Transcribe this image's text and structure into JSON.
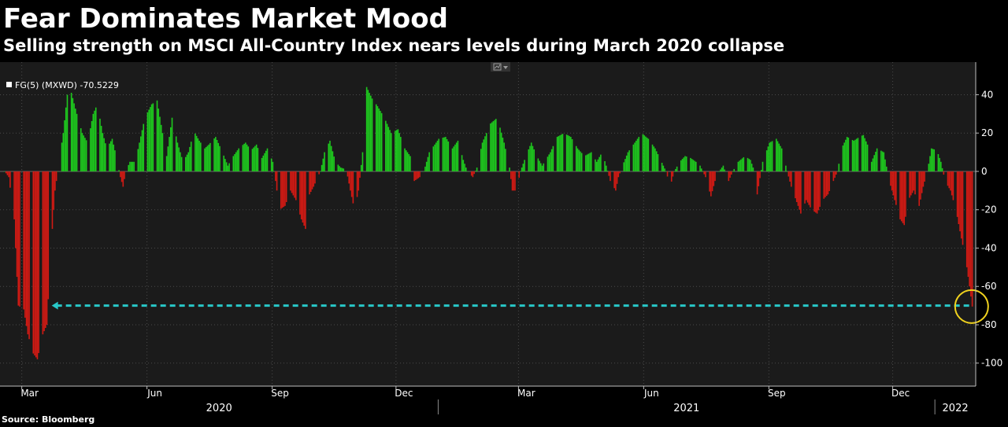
{
  "title": "Fear Dominates Market Mood",
  "subtitle": "Selling strength on MSCI All-Country Index nears levels during March 2020 collapse",
  "source": "Source: Bloomberg",
  "colors": {
    "background": "#000000",
    "plot_background": "#1b1b1b",
    "positive": "#1ec81e",
    "negative": "#d21a14",
    "dashed_line": "#28c8c8",
    "highlight_circle": "#f0d21e",
    "grid": "#4a4a4a"
  },
  "icons": {
    "toolbar": "chart-options-icon",
    "legend": "square-legend-icon"
  },
  "chart_data": {
    "type": "bar",
    "legend": "FG(5) (MXWD) -70.5229",
    "legend_position": "top-left",
    "x_range": [
      "2020-02-14",
      "2022-01-31"
    ],
    "ylim": [
      -112,
      57
    ],
    "yticks": [
      40,
      20,
      0,
      -20,
      -40,
      -60,
      -80,
      -100
    ],
    "y_axis_side": "right",
    "grid": true,
    "month_ticks": [
      {
        "label": "Mar",
        "date": "2020-03-01"
      },
      {
        "label": "Jun",
        "date": "2020-06-01"
      },
      {
        "label": "Sep",
        "date": "2020-09-01"
      },
      {
        "label": "Dec",
        "date": "2020-12-01"
      },
      {
        "label": "Mar",
        "date": "2021-03-01"
      },
      {
        "label": "Jun",
        "date": "2021-06-01"
      },
      {
        "label": "Sep",
        "date": "2021-09-01"
      },
      {
        "label": "Dec",
        "date": "2021-12-01"
      }
    ],
    "year_labels": [
      {
        "label": "2020",
        "from": "2020-02-14",
        "to": "2021-01-01"
      },
      {
        "label": "2021",
        "from": "2021-01-01",
        "to": "2022-01-01"
      },
      {
        "label": "2022",
        "from": "2022-01-01",
        "to": "2022-01-31"
      }
    ],
    "reference_line": {
      "value": -70,
      "from": "2020-03-23",
      "to": "2022-01-27",
      "style": "dashed",
      "arrow": "left"
    },
    "highlight": {
      "date": "2022-01-28",
      "value": -70.5,
      "shape": "circle"
    },
    "series_anchors": [
      [
        "2020-02-17",
        0
      ],
      [
        "2020-02-20",
        -3
      ],
      [
        "2020-02-24",
        -25
      ],
      [
        "2020-02-27",
        -70
      ],
      [
        "2020-03-02",
        -72
      ],
      [
        "2020-03-05",
        -85
      ],
      [
        "2020-03-09",
        -95
      ],
      [
        "2020-03-12",
        -98
      ],
      [
        "2020-03-16",
        -85
      ],
      [
        "2020-03-19",
        -80
      ],
      [
        "2020-03-22",
        -40
      ],
      [
        "2020-03-25",
        -10
      ],
      [
        "2020-03-27",
        0
      ],
      [
        "2020-03-31",
        20
      ],
      [
        "2020-04-03",
        40
      ],
      [
        "2020-04-06",
        41
      ],
      [
        "2020-04-10",
        30
      ],
      [
        "2020-04-14",
        20
      ],
      [
        "2020-04-18",
        15
      ],
      [
        "2020-04-22",
        30
      ],
      [
        "2020-04-25",
        35
      ],
      [
        "2020-04-29",
        20
      ],
      [
        "2020-05-02",
        12
      ],
      [
        "2020-05-06",
        17
      ],
      [
        "2020-05-09",
        8
      ],
      [
        "2020-05-12",
        -3
      ],
      [
        "2020-05-14",
        -8
      ],
      [
        "2020-05-16",
        0
      ],
      [
        "2020-05-19",
        5
      ],
      [
        "2020-05-23",
        5
      ],
      [
        "2020-05-26",
        15
      ],
      [
        "2020-05-30",
        28
      ],
      [
        "2020-06-04",
        35
      ],
      [
        "2020-06-08",
        37
      ],
      [
        "2020-06-12",
        20
      ],
      [
        "2020-06-15",
        8
      ],
      [
        "2020-06-19",
        28
      ],
      [
        "2020-06-23",
        15
      ],
      [
        "2020-06-27",
        5
      ],
      [
        "2020-07-01",
        10
      ],
      [
        "2020-07-05",
        21
      ],
      [
        "2020-07-09",
        16
      ],
      [
        "2020-07-13",
        12
      ],
      [
        "2020-07-16",
        14
      ],
      [
        "2020-07-21",
        18
      ],
      [
        "2020-07-26",
        10
      ],
      [
        "2020-07-30",
        3
      ],
      [
        "2020-08-03",
        8
      ],
      [
        "2020-08-07",
        12
      ],
      [
        "2020-08-12",
        15
      ],
      [
        "2020-08-16",
        11
      ],
      [
        "2020-08-20",
        14
      ],
      [
        "2020-08-24",
        7
      ],
      [
        "2020-08-28",
        12
      ],
      [
        "2020-09-01",
        5
      ],
      [
        "2020-09-03",
        -5
      ],
      [
        "2020-09-06",
        -20
      ],
      [
        "2020-09-10",
        -18
      ],
      [
        "2020-09-14",
        -10
      ],
      [
        "2020-09-18",
        -15
      ],
      [
        "2020-09-22",
        -25
      ],
      [
        "2020-09-25",
        -30
      ],
      [
        "2020-09-28",
        -12
      ],
      [
        "2020-10-01",
        -8
      ],
      [
        "2020-10-04",
        -3
      ],
      [
        "2020-10-06",
        0
      ],
      [
        "2020-10-09",
        10
      ],
      [
        "2020-10-13",
        16
      ],
      [
        "2020-10-17",
        5
      ],
      [
        "2020-10-21",
        2
      ],
      [
        "2020-10-25",
        1
      ],
      [
        "2020-10-28",
        -10
      ],
      [
        "2020-10-31",
        -20
      ],
      [
        "2020-11-03",
        -10
      ],
      [
        "2020-11-06",
        10
      ],
      [
        "2020-11-09",
        44
      ],
      [
        "2020-11-13",
        38
      ],
      [
        "2020-11-17",
        34
      ],
      [
        "2020-11-22",
        28
      ],
      [
        "2020-11-27",
        20
      ],
      [
        "2020-12-02",
        22
      ],
      [
        "2020-12-07",
        12
      ],
      [
        "2020-12-11",
        8
      ],
      [
        "2020-12-14",
        -5
      ],
      [
        "2020-12-18",
        -3
      ],
      [
        "2020-12-21",
        0
      ],
      [
        "2020-12-25",
        10
      ],
      [
        "2021-01-01",
        17
      ],
      [
        "2021-01-06",
        18
      ],
      [
        "2021-01-11",
        12
      ],
      [
        "2021-01-15",
        16
      ],
      [
        "2021-01-19",
        6
      ],
      [
        "2021-01-22",
        0
      ],
      [
        "2021-01-26",
        -3
      ],
      [
        "2021-01-29",
        2
      ],
      [
        "2021-02-02",
        15
      ],
      [
        "2021-02-08",
        25
      ],
      [
        "2021-02-13",
        28
      ],
      [
        "2021-02-18",
        15
      ],
      [
        "2021-02-22",
        2
      ],
      [
        "2021-02-24",
        -10
      ],
      [
        "2021-02-27",
        -10
      ],
      [
        "2021-03-02",
        0
      ],
      [
        "2021-03-06",
        8
      ],
      [
        "2021-03-10",
        15
      ],
      [
        "2021-03-14",
        8
      ],
      [
        "2021-03-18",
        3
      ],
      [
        "2021-03-24",
        10
      ],
      [
        "2021-03-29",
        18
      ],
      [
        "2021-04-03",
        20
      ],
      [
        "2021-04-08",
        18
      ],
      [
        "2021-04-13",
        12
      ],
      [
        "2021-04-18",
        8
      ],
      [
        "2021-04-23",
        10
      ],
      [
        "2021-04-27",
        5
      ],
      [
        "2021-05-01",
        10
      ],
      [
        "2021-05-04",
        3
      ],
      [
        "2021-05-07",
        -5
      ],
      [
        "2021-05-11",
        -10
      ],
      [
        "2021-05-13",
        -3
      ],
      [
        "2021-05-16",
        3
      ],
      [
        "2021-05-20",
        10
      ],
      [
        "2021-05-25",
        15
      ],
      [
        "2021-05-30",
        20
      ],
      [
        "2021-06-04",
        17
      ],
      [
        "2021-06-09",
        12
      ],
      [
        "2021-06-13",
        6
      ],
      [
        "2021-06-17",
        0
      ],
      [
        "2021-06-20",
        -8
      ],
      [
        "2021-06-23",
        0
      ],
      [
        "2021-06-27",
        5
      ],
      [
        "2021-07-01",
        8
      ],
      [
        "2021-07-05",
        7
      ],
      [
        "2021-07-09",
        5
      ],
      [
        "2021-07-12",
        3
      ],
      [
        "2021-07-16",
        -3
      ],
      [
        "2021-07-20",
        -13
      ],
      [
        "2021-07-23",
        -5
      ],
      [
        "2021-07-26",
        0
      ],
      [
        "2021-07-29",
        3
      ],
      [
        "2021-08-02",
        -5
      ],
      [
        "2021-08-05",
        0
      ],
      [
        "2021-08-09",
        5
      ],
      [
        "2021-08-14",
        8
      ],
      [
        "2021-08-18",
        6
      ],
      [
        "2021-08-21",
        0
      ],
      [
        "2021-08-23",
        -12
      ],
      [
        "2021-08-27",
        5
      ],
      [
        "2021-09-01",
        15
      ],
      [
        "2021-09-06",
        17
      ],
      [
        "2021-09-10",
        12
      ],
      [
        "2021-09-14",
        0
      ],
      [
        "2021-09-17",
        -8
      ],
      [
        "2021-09-21",
        -16
      ],
      [
        "2021-09-24",
        -22
      ],
      [
        "2021-09-28",
        -15
      ],
      [
        "2021-10-02",
        -20
      ],
      [
        "2021-10-06",
        -22
      ],
      [
        "2021-10-10",
        -15
      ],
      [
        "2021-10-14",
        -12
      ],
      [
        "2021-10-18",
        -5
      ],
      [
        "2021-10-21",
        0
      ],
      [
        "2021-10-24",
        12
      ],
      [
        "2021-10-28",
        18
      ],
      [
        "2021-11-02",
        16
      ],
      [
        "2021-11-06",
        18
      ],
      [
        "2021-11-09",
        19
      ],
      [
        "2021-11-12",
        14
      ],
      [
        "2021-11-15",
        5
      ],
      [
        "2021-11-19",
        12
      ],
      [
        "2021-11-24",
        10
      ],
      [
        "2021-11-28",
        -5
      ],
      [
        "2021-12-02",
        -15
      ],
      [
        "2021-12-06",
        -25
      ],
      [
        "2021-12-09",
        -28
      ],
      [
        "2021-12-12",
        -15
      ],
      [
        "2021-12-16",
        -10
      ],
      [
        "2021-12-20",
        -18
      ],
      [
        "2021-12-23",
        -8
      ],
      [
        "2021-12-26",
        0
      ],
      [
        "2021-12-29",
        12
      ],
      [
        "2022-01-02",
        11
      ],
      [
        "2022-01-05",
        5
      ],
      [
        "2022-01-08",
        -5
      ],
      [
        "2022-01-12",
        -10
      ],
      [
        "2022-01-16",
        -20
      ],
      [
        "2022-01-20",
        -35
      ],
      [
        "2022-01-23",
        -45
      ],
      [
        "2022-01-26",
        -60
      ],
      [
        "2022-01-28",
        -70.5
      ]
    ]
  }
}
